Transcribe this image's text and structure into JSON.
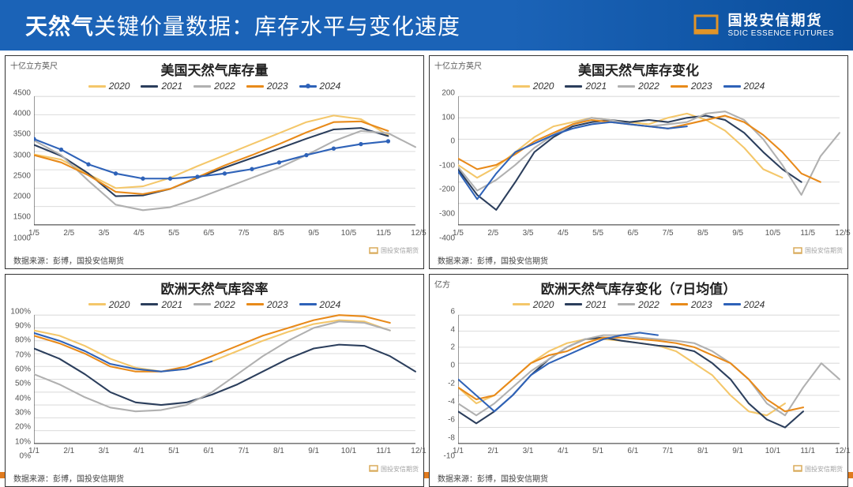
{
  "header": {
    "title_bold": "天然气",
    "title_rest": "关键价量数据：库存水平与变化速度",
    "logo_cn": "国投安信期货",
    "logo_en": "SDIC ESSENCE FUTURES",
    "header_bg_from": "#1b63b7",
    "header_bg_to": "#0a4e9c",
    "accent": "#e09429"
  },
  "footer": {
    "bar_color": "#e07b1f"
  },
  "palette": {
    "y2020": "#f4c76a",
    "y2021": "#2b3e5c",
    "y2022": "#b0b0b0",
    "y2023": "#e88a1a",
    "y2024": "#2e62b8"
  },
  "legend_labels": {
    "y2020": "2020",
    "y2021": "2021",
    "y2022": "2022",
    "y2023": "2023",
    "y2024": "2024"
  },
  "source_label": "数据来源：彭博，国投安信期货",
  "mini_logo": "国投安信期货",
  "charts": {
    "us_storage": {
      "title": "美国天然气库存量",
      "yunit": "十亿立方英尺",
      "ylim": [
        1000,
        4500
      ],
      "ytick_step": 500,
      "xticks": [
        "1/5",
        "2/5",
        "3/5",
        "4/5",
        "5/5",
        "6/5",
        "7/5",
        "8/5",
        "9/5",
        "10/5",
        "11/5",
        "12/5"
      ],
      "series": {
        "y2020": [
          2920,
          2780,
          2380,
          2000,
          2050,
          2280,
          2600,
          2900,
          3200,
          3500,
          3800,
          3980,
          3880,
          3450
        ],
        "y2021": [
          3180,
          2880,
          2400,
          1780,
          1800,
          1980,
          2280,
          2560,
          2820,
          3080,
          3350,
          3600,
          3640,
          3420
        ],
        "y2022": [
          3300,
          2900,
          2200,
          1550,
          1400,
          1480,
          1720,
          2000,
          2280,
          2560,
          2900,
          3280,
          3560,
          3500,
          3120
        ],
        "y2023": [
          2900,
          2700,
          2350,
          1900,
          1840,
          1980,
          2300,
          2620,
          2900,
          3200,
          3520,
          3800,
          3820,
          3560
        ],
        "y2024": [
          3340,
          3050,
          2650,
          2400,
          2260,
          2260,
          2310,
          2400,
          2520,
          2700,
          2900,
          3080,
          3200,
          3280
        ]
      },
      "markers_2024": true
    },
    "us_change": {
      "title": "美国天然气库存变化",
      "yunit": "十亿立方英尺",
      "ylim": [
        -400,
        200
      ],
      "ytick_step": 100,
      "xticks": [
        "1/5",
        "2/5",
        "3/5",
        "4/5",
        "5/5",
        "6/5",
        "7/5",
        "8/5",
        "9/5",
        "10/5",
        "11/5",
        "12/5"
      ],
      "series": {
        "y2020": [
          -120,
          -180,
          -130,
          -60,
          10,
          60,
          80,
          100,
          90,
          80,
          70,
          100,
          120,
          90,
          40,
          -40,
          -140,
          -180
        ],
        "y2021": [
          -140,
          -260,
          -330,
          -200,
          -60,
          10,
          60,
          80,
          90,
          80,
          90,
          80,
          100,
          110,
          90,
          30,
          -60,
          -140,
          -200
        ],
        "y2022": [
          -130,
          -240,
          -190,
          -120,
          -40,
          20,
          70,
          100,
          90,
          70,
          60,
          70,
          80,
          120,
          130,
          90,
          0,
          -120,
          -260,
          -80,
          30
        ],
        "y2023": [
          -90,
          -140,
          -120,
          -70,
          -10,
          30,
          70,
          90,
          80,
          70,
          60,
          50,
          70,
          90,
          110,
          80,
          20,
          -60,
          -160,
          -200
        ],
        "y2024": [
          -150,
          -280,
          -160,
          -60,
          -20,
          20,
          50,
          70,
          80,
          70,
          60,
          50,
          60
        ]
      }
    },
    "eu_capacity": {
      "title": "欧洲天然气库容率",
      "yunit": "",
      "ylim": [
        0,
        100
      ],
      "ytick_step": 10,
      "ysuffix": "%",
      "xticks": [
        "1/1",
        "2/1",
        "3/1",
        "4/1",
        "5/1",
        "6/1",
        "7/1",
        "8/1",
        "9/1",
        "10/1",
        "11/1",
        "12/1"
      ],
      "series": {
        "y2020": [
          88,
          84,
          76,
          66,
          59,
          56,
          58,
          64,
          72,
          80,
          87,
          93,
          96,
          95,
          88
        ],
        "y2021": [
          74,
          66,
          54,
          40,
          32,
          30,
          32,
          38,
          46,
          56,
          66,
          74,
          77,
          76,
          68,
          56
        ],
        "y2022": [
          54,
          46,
          36,
          28,
          25,
          26,
          30,
          40,
          54,
          68,
          80,
          90,
          95,
          94,
          88
        ],
        "y2023": [
          84,
          78,
          70,
          60,
          56,
          56,
          60,
          68,
          76,
          84,
          90,
          96,
          100,
          99,
          94
        ],
        "y2024": [
          86,
          80,
          72,
          62,
          58,
          56,
          58,
          64
        ]
      }
    },
    "eu_change": {
      "title": "欧洲天然气库存变化（7日均值）",
      "yunit": "亿方",
      "ylim": [
        -10,
        6
      ],
      "ytick_step": 2,
      "xticks": [
        "1/1",
        "2/1",
        "3/1",
        "4/1",
        "5/1",
        "6/1",
        "7/1",
        "8/1",
        "9/1",
        "10/1",
        "11/1",
        "12/1"
      ],
      "series": {
        "y2020": [
          -3,
          -5,
          -4,
          -2,
          0,
          1.5,
          2.5,
          3,
          3,
          2.8,
          2.5,
          2.2,
          1.5,
          0,
          -1.5,
          -4,
          -6,
          -6.5,
          -5
        ],
        "y2021": [
          -6,
          -7.5,
          -6,
          -4,
          -1.5,
          0.5,
          2,
          3,
          3.2,
          2.8,
          2.5,
          2.2,
          2.0,
          1.5,
          0,
          -2,
          -5,
          -7,
          -8,
          -6
        ],
        "y2022": [
          -5,
          -6.5,
          -5,
          -3,
          -1,
          0.5,
          2,
          3,
          3.5,
          3.5,
          3.2,
          3,
          2.8,
          2.5,
          1.5,
          0,
          -2,
          -5,
          -6.5,
          -3,
          0,
          -2
        ],
        "y2023": [
          -3,
          -4.5,
          -4,
          -2,
          0,
          1,
          1.5,
          2.5,
          3.2,
          3.2,
          3,
          2.8,
          2.5,
          2,
          1,
          0,
          -2,
          -4.5,
          -6,
          -5.5
        ],
        "y2024": [
          -2,
          -4,
          -6,
          -4,
          -1.5,
          0,
          1,
          2,
          3,
          3.5,
          3.8,
          3.5
        ]
      }
    }
  },
  "styling": {
    "grid_color": "#dcdcdc",
    "axis_color": "#333333",
    "tick_fontsize": 10,
    "title_fontsize": 17,
    "line_width": 2,
    "background": "#ffffff"
  }
}
